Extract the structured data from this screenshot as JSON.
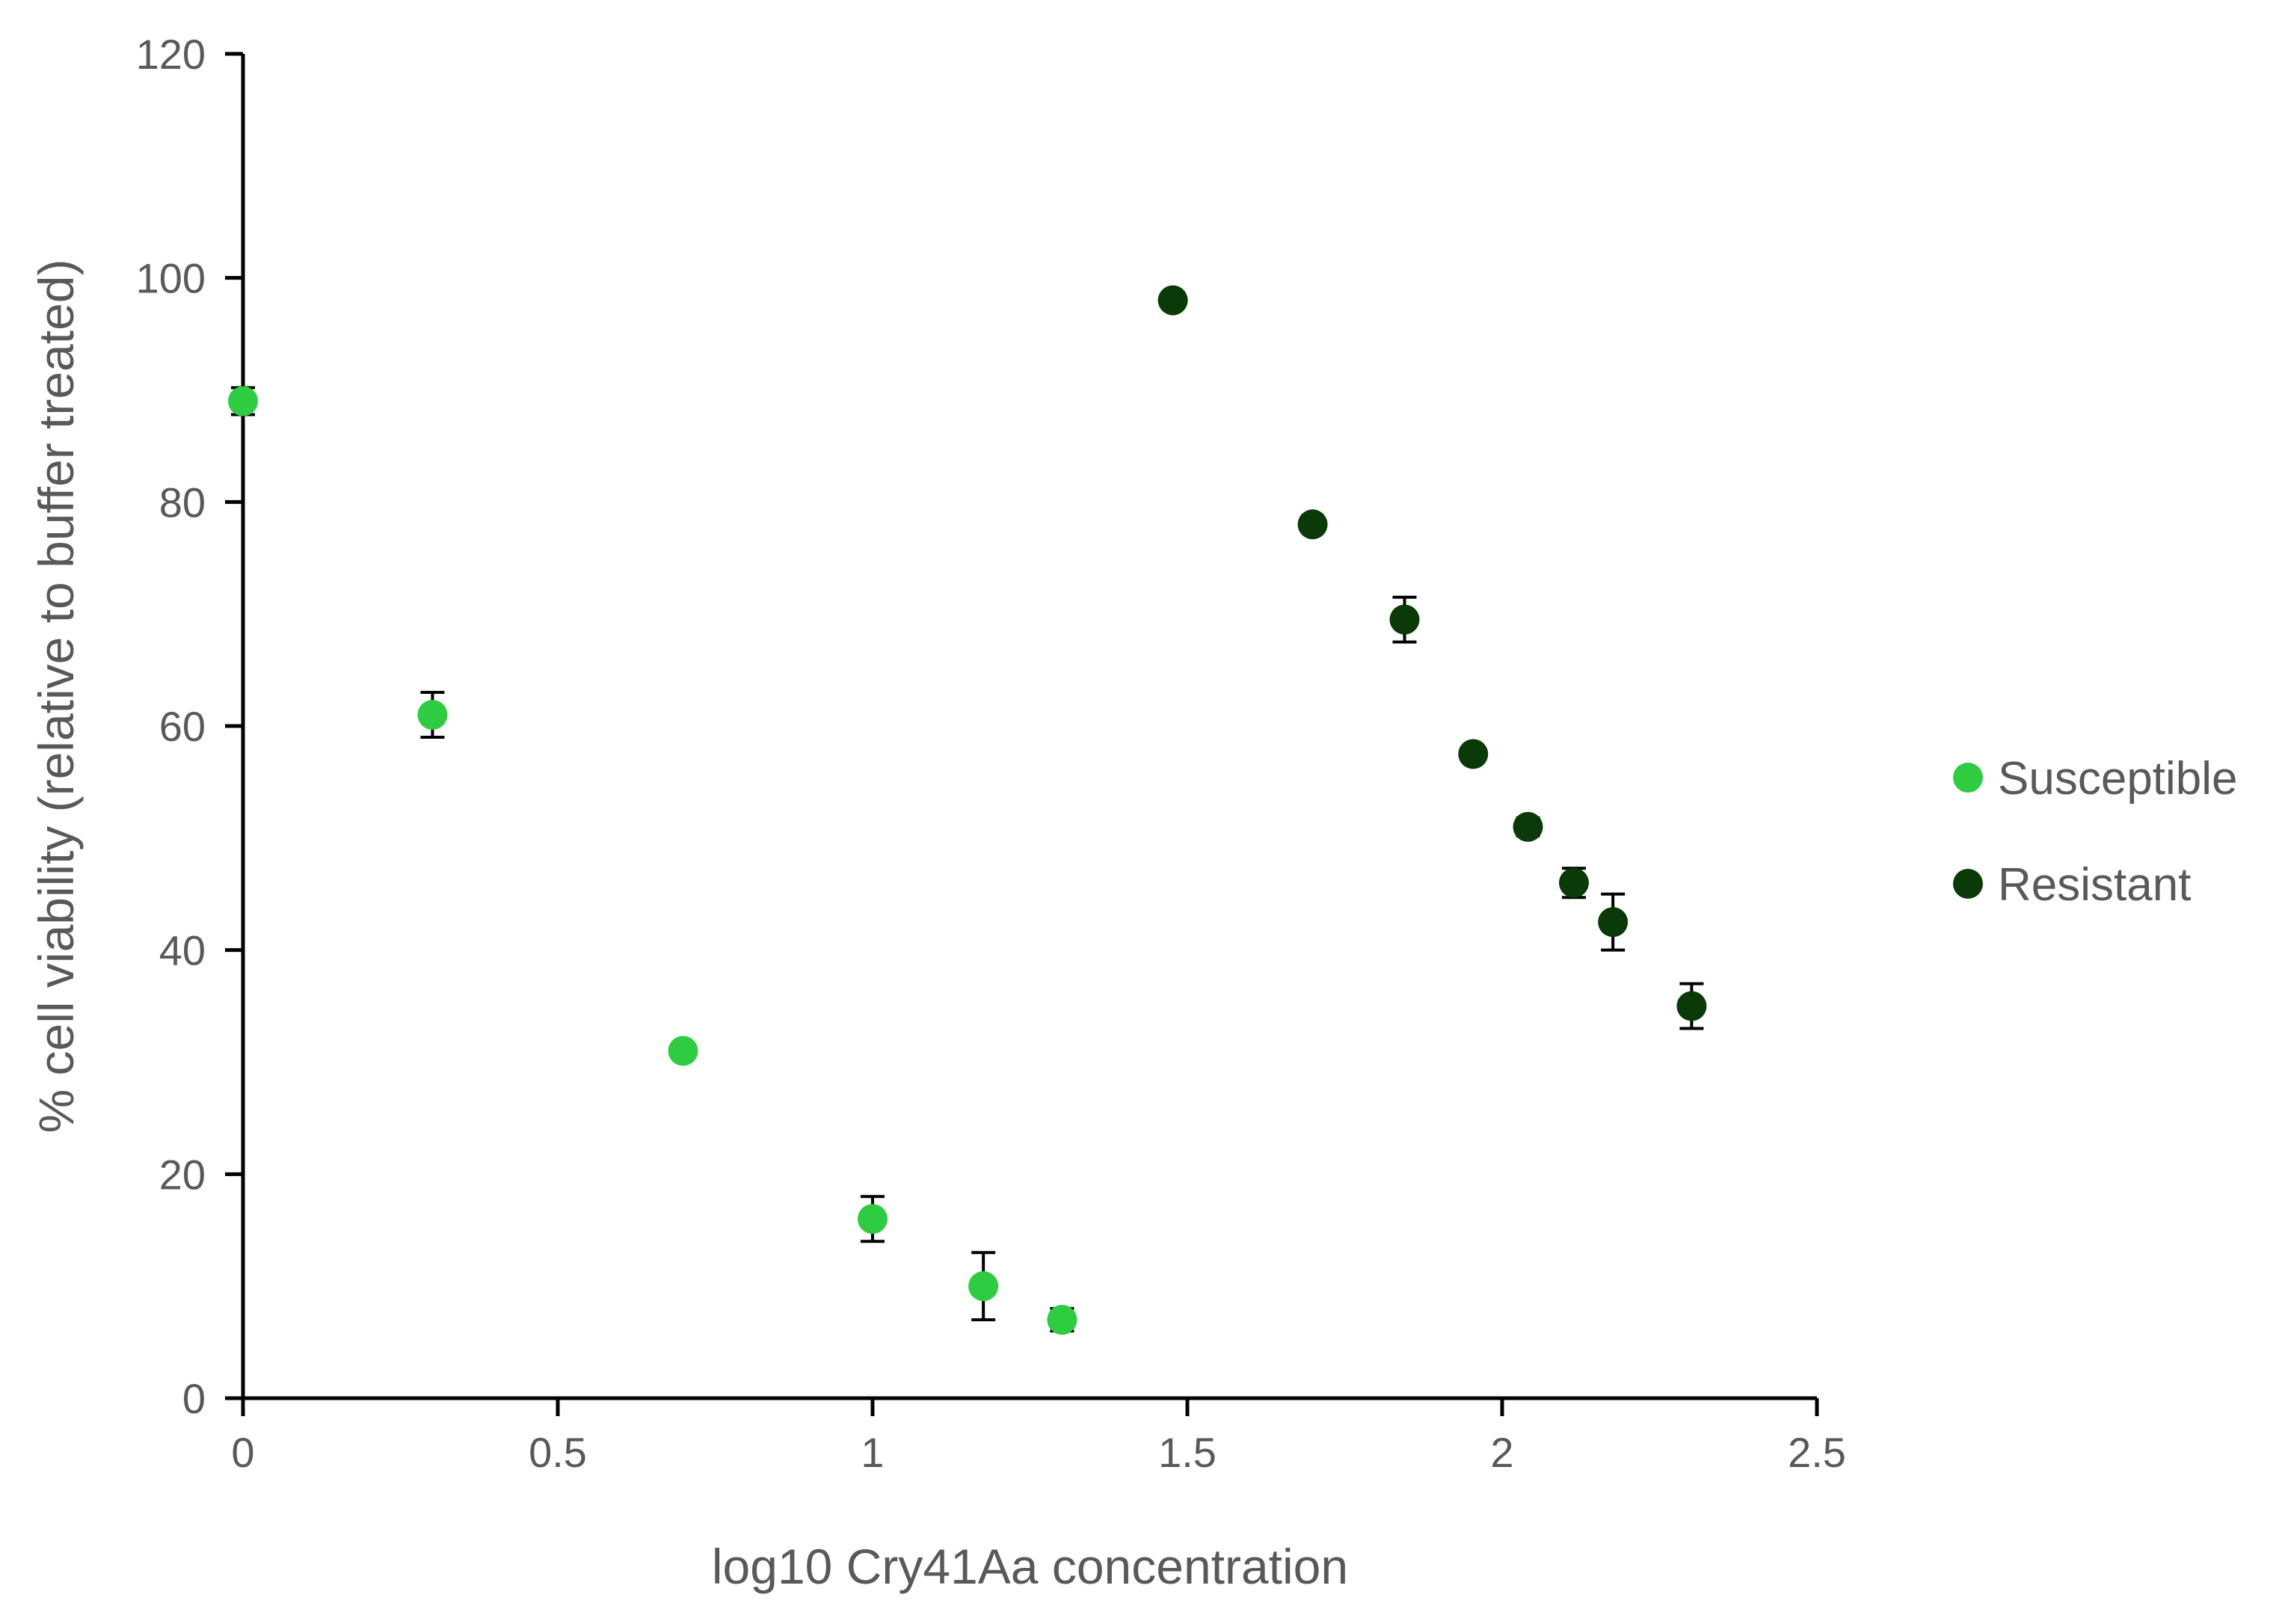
{
  "chart_data": {
    "type": "scatter",
    "title": "",
    "xlabel": "log10 Cry41Aa concentration",
    "ylabel": "% cell viability (relative to buffer treated)",
    "xlim": [
      0,
      2.5
    ],
    "ylim": [
      0,
      120
    ],
    "x_ticks": [
      "0",
      "0.5",
      "1",
      "1.5",
      "2",
      "2.5"
    ],
    "y_ticks": [
      "0",
      "20",
      "40",
      "60",
      "80",
      "100",
      "120"
    ],
    "grid": false,
    "legend_position": "right",
    "series": [
      {
        "name": "Susceptible",
        "color": "#2ecc40",
        "points": [
          {
            "x": 0.0,
            "y": 89,
            "err": 1.2
          },
          {
            "x": 0.301,
            "y": 61,
            "err": 2
          },
          {
            "x": 0.699,
            "y": 31,
            "err": 0
          },
          {
            "x": 1.0,
            "y": 16,
            "err": 2
          },
          {
            "x": 1.176,
            "y": 10,
            "err": 3
          },
          {
            "x": 1.301,
            "y": 7,
            "err": 1
          }
        ]
      },
      {
        "name": "Resistant",
        "color": "#0a3a08",
        "points": [
          {
            "x": 1.477,
            "y": 98,
            "err": 0
          },
          {
            "x": 1.699,
            "y": 78,
            "err": 0
          },
          {
            "x": 1.845,
            "y": 69.5,
            "err": 2
          },
          {
            "x": 1.954,
            "y": 57.5,
            "err": 0.5
          },
          {
            "x": 2.041,
            "y": 51,
            "err": 0.8
          },
          {
            "x": 2.114,
            "y": 46,
            "err": 1.3
          },
          {
            "x": 2.176,
            "y": 42.5,
            "err": 2.5
          },
          {
            "x": 2.301,
            "y": 35,
            "err": 2
          }
        ]
      }
    ]
  }
}
